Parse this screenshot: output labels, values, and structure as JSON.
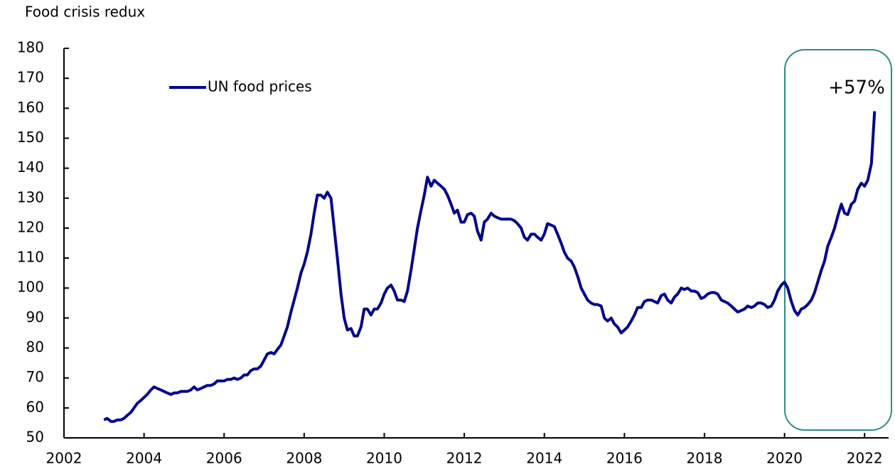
{
  "chart_data": {
    "type": "line",
    "title": "Food crisis redux",
    "annotation": "+57%",
    "legend": "upper left",
    "xlim": [
      2002,
      2022.6
    ],
    "xticks": [
      2002,
      2004,
      2006,
      2008,
      2010,
      2012,
      2014,
      2016,
      2018,
      2020,
      2022
    ],
    "ylim": [
      50,
      180
    ],
    "yticks": [
      50,
      60,
      70,
      80,
      90,
      100,
      110,
      120,
      130,
      140,
      150,
      160,
      170,
      180
    ],
    "series": [
      {
        "name": "UN food prices",
        "color": "#00058c",
        "x": [
          2003,
          2003.08,
          2003.17,
          2003.25,
          2003.33,
          2003.42,
          2003.5,
          2003.58,
          2003.67,
          2003.75,
          2003.83,
          2003.92,
          2004,
          2004.08,
          2004.17,
          2004.25,
          2004.33,
          2004.42,
          2004.5,
          2004.58,
          2004.67,
          2004.75,
          2004.83,
          2004.92,
          2005,
          2005.08,
          2005.17,
          2005.25,
          2005.33,
          2005.42,
          2005.5,
          2005.58,
          2005.67,
          2005.75,
          2005.83,
          2005.92,
          2006,
          2006.08,
          2006.17,
          2006.25,
          2006.33,
          2006.42,
          2006.5,
          2006.58,
          2006.67,
          2006.75,
          2006.83,
          2006.92,
          2007,
          2007.08,
          2007.17,
          2007.25,
          2007.33,
          2007.42,
          2007.5,
          2007.58,
          2007.67,
          2007.75,
          2007.83,
          2007.92,
          2008,
          2008.08,
          2008.17,
          2008.25,
          2008.33,
          2008.42,
          2008.5,
          2008.58,
          2008.67,
          2008.75,
          2008.83,
          2008.92,
          2009,
          2009.08,
          2009.17,
          2009.25,
          2009.33,
          2009.42,
          2009.5,
          2009.58,
          2009.67,
          2009.75,
          2009.83,
          2009.92,
          2010,
          2010.08,
          2010.17,
          2010.25,
          2010.33,
          2010.42,
          2010.5,
          2010.58,
          2010.67,
          2010.75,
          2010.83,
          2010.92,
          2011,
          2011.08,
          2011.17,
          2011.25,
          2011.33,
          2011.42,
          2011.5,
          2011.58,
          2011.67,
          2011.75,
          2011.83,
          2011.92,
          2012,
          2012.08,
          2012.17,
          2012.25,
          2012.33,
          2012.42,
          2012.5,
          2012.58,
          2012.67,
          2012.75,
          2012.83,
          2012.92,
          2013,
          2013.08,
          2013.17,
          2013.25,
          2013.33,
          2013.42,
          2013.5,
          2013.58,
          2013.67,
          2013.75,
          2013.83,
          2013.92,
          2014,
          2014.08,
          2014.17,
          2014.25,
          2014.33,
          2014.42,
          2014.5,
          2014.58,
          2014.67,
          2014.75,
          2014.83,
          2014.92,
          2015,
          2015.08,
          2015.17,
          2015.25,
          2015.33,
          2015.42,
          2015.5,
          2015.58,
          2015.67,
          2015.75,
          2015.83,
          2015.92,
          2016,
          2016.08,
          2016.17,
          2016.25,
          2016.33,
          2016.42,
          2016.5,
          2016.58,
          2016.67,
          2016.75,
          2016.83,
          2016.92,
          2017,
          2017.08,
          2017.17,
          2017.25,
          2017.33,
          2017.42,
          2017.5,
          2017.58,
          2017.67,
          2017.75,
          2017.83,
          2017.92,
          2018,
          2018.08,
          2018.17,
          2018.25,
          2018.33,
          2018.42,
          2018.5,
          2018.58,
          2018.67,
          2018.75,
          2018.83,
          2018.92,
          2019,
          2019.08,
          2019.17,
          2019.25,
          2019.33,
          2019.42,
          2019.5,
          2019.58,
          2019.67,
          2019.75,
          2019.83,
          2019.92,
          2020,
          2020.08,
          2020.17,
          2020.25,
          2020.33,
          2020.42,
          2020.5,
          2020.58,
          2020.67,
          2020.75,
          2020.83,
          2020.92,
          2021,
          2021.08,
          2021.17,
          2021.25,
          2021.33,
          2021.42,
          2021.5,
          2021.58,
          2021.67,
          2021.75,
          2021.83,
          2021.92,
          2022,
          2022.08,
          2022.17,
          2022.25
        ],
        "values": [
          56,
          56.5,
          55.5,
          55.5,
          56,
          56,
          56.5,
          57.5,
          58.5,
          60,
          61.5,
          62.5,
          63.5,
          64.5,
          66,
          67,
          66.5,
          66,
          65.5,
          65,
          64.5,
          65,
          65,
          65.5,
          65.5,
          65.5,
          66,
          67,
          66,
          66.5,
          67,
          67.5,
          67.5,
          68,
          69,
          69,
          69,
          69.5,
          69.5,
          70,
          69.5,
          70,
          71,
          71,
          72.5,
          73,
          73,
          74,
          76,
          78,
          78.5,
          78,
          79.5,
          81,
          84,
          87,
          92,
          96,
          100,
          105,
          108,
          112,
          118,
          125,
          131,
          131,
          130,
          132,
          130,
          120,
          110,
          98,
          90,
          86,
          86.5,
          84,
          84,
          87,
          93,
          93,
          91,
          93,
          93,
          95,
          98,
          100,
          101,
          99,
          96,
          96,
          95.5,
          99,
          106,
          113,
          120,
          126,
          131,
          137,
          134,
          136,
          135,
          134,
          133,
          131,
          128,
          125,
          126,
          122,
          122,
          124.5,
          125,
          124,
          119,
          116,
          122,
          123,
          125,
          124,
          123.5,
          123,
          123,
          123,
          123,
          122.5,
          121.5,
          120,
          117,
          116,
          118,
          118,
          117,
          116,
          118,
          121.5,
          121,
          120.5,
          118,
          115,
          112,
          110,
          109,
          107,
          104,
          100,
          98,
          96,
          95,
          94.5,
          94.5,
          94,
          90,
          89,
          90,
          88,
          87,
          85,
          86,
          87,
          89,
          91,
          93.5,
          93.5,
          95.5,
          96,
          96,
          95.5,
          95,
          97.5,
          98,
          96,
          95,
          97,
          98,
          100,
          99.5,
          100,
          99,
          99,
          98.5,
          96.5,
          97,
          98,
          98.5,
          98.5,
          98,
          96,
          95.5,
          95,
          94,
          93,
          92,
          92.5,
          93,
          94,
          93.5,
          94,
          95,
          95,
          94.5,
          93.5,
          94,
          96,
          99,
          101,
          102,
          100,
          95.5,
          92.5,
          91,
          93,
          93.5,
          94.5,
          96,
          98.5,
          102,
          106,
          109,
          114,
          117,
          120,
          124,
          128,
          125,
          124.5,
          128,
          129,
          133,
          135,
          134,
          136,
          141.5,
          159
        ]
      }
    ]
  }
}
